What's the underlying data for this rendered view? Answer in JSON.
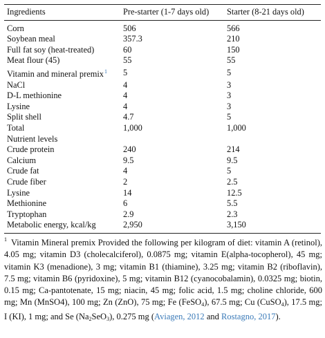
{
  "table": {
    "headers": [
      "Ingredients",
      "Pre-starter (1-7 days old)",
      "Starter (8-21 days old)"
    ],
    "rows": [
      {
        "label": "Corn",
        "pre": "506",
        "starter": "566"
      },
      {
        "label": "Soybean meal",
        "pre": "357.3",
        "starter": "210"
      },
      {
        "label": "Full fat soy (heat-treated)",
        "pre": "60",
        "starter": "150"
      },
      {
        "label": "Meat flour (45)",
        "pre": "55",
        "starter": "55"
      },
      {
        "label": "Vitamin and mineral premix",
        "footnote_mark": "1",
        "pre": "5",
        "starter": "5"
      },
      {
        "label": "NaCl",
        "pre": "4",
        "starter": "3"
      },
      {
        "label": "D-L methionine",
        "pre": "4",
        "starter": "3"
      },
      {
        "label": "Lysine",
        "pre": "4",
        "starter": "3"
      },
      {
        "label": "Split shell",
        "pre": "4.7",
        "starter": "5"
      },
      {
        "label": "Total",
        "pre": "1,000",
        "starter": "1,000"
      },
      {
        "label": "Nutrient levels",
        "pre": "",
        "starter": ""
      },
      {
        "label": "Crude protein",
        "pre": "240",
        "starter": "214"
      },
      {
        "label": "Calcium",
        "pre": "9.5",
        "starter": "9.5"
      },
      {
        "label": "Crude fat",
        "pre": "4",
        "starter": "5"
      },
      {
        "label": "Crude fiber",
        "pre": "2",
        "starter": "2.5"
      },
      {
        "label": "Lysine",
        "pre": "14",
        "starter": "12.5"
      },
      {
        "label": "Methionine",
        "pre": "6",
        "starter": "5.5"
      },
      {
        "label": "Tryptophan",
        "pre": "2.9",
        "starter": "2.3"
      },
      {
        "label": "Metabolic energy, kcal/kg",
        "pre": "2,950",
        "starter": "3,150"
      }
    ]
  },
  "footnote": {
    "mark": "1",
    "segments": [
      {
        "t": "Vitamin Mineral premix Provided the following per kilogram of diet: vitamin A (retinol), 4.05 mg; vitamin D3 (cholecalciferol), 0.0875 mg; vitamin E(alpha-tocopherol), 45 mg; vitamin K3 (menadione), 3 mg; vitamin B1 (thiamine), 3.25 mg; vitamin B2 (riboflavin), 7.5 mg; vitamin B6 (pyridoxine), 5 mg; vitamin B12 (cyanocobalamin), 0.0325 mg; biotin, 0.15 mg; Ca-pantotenate, 15 mg; niacin, 45 mg; folic acid, 1.5 mg; choline chloride, 600 mg; Mn (MnSO4), 100 mg; Zn (ZnO), 75 mg; Fe (FeSO"
      },
      {
        "sub": "4"
      },
      {
        "t": "), 67.5 mg; Cu (CuSO"
      },
      {
        "sub": "4"
      },
      {
        "t": "), 17.5 mg; I (KI), 1 mg; and Se (Na"
      },
      {
        "sub": "2"
      },
      {
        "t": "SeO"
      },
      {
        "sub": "3"
      },
      {
        "t": "), 0.275 mg ("
      },
      {
        "link": "Aviagen, 2012"
      },
      {
        "t": " and "
      },
      {
        "link": "Rostagno, 2017"
      },
      {
        "t": ")."
      }
    ]
  }
}
